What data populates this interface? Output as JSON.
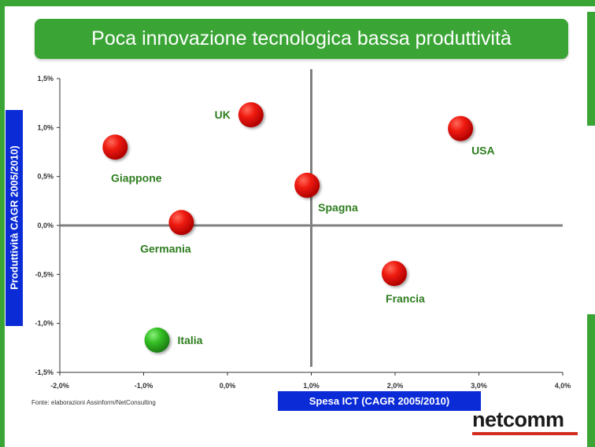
{
  "title": "Poca innovazione tecnologica bassa produttività",
  "source_note": "Fonte: elaborazioni Assinform/NetConsulting",
  "logo": {
    "text": "netcomm"
  },
  "colors": {
    "accent": "#3aa535",
    "axis_label_bg": "#0a2bd6",
    "bubble_red": "#e00000",
    "bubble_green": "#2fb51f",
    "label_green": "#2e7d1f"
  },
  "chart_data": {
    "type": "scatter",
    "xlabel": "Spesa ICT (CAGR 2005/2010)",
    "ylabel": "Produttività  CAGR 2005/2010)",
    "xlim": [
      -2.0,
      4.0
    ],
    "ylim": [
      -1.5,
      1.5
    ],
    "x_ticks": [
      "-2,0%",
      "-1,0%",
      "0,0%",
      "1,0%",
      "2,0%",
      "3,0%",
      "4,0%"
    ],
    "x_tick_values": [
      -2.0,
      -1.0,
      0.0,
      1.0,
      2.0,
      3.0,
      4.0
    ],
    "y_ticks": [
      "1,5%",
      "1,0%",
      "0,5%",
      "0,0%",
      "-0,5%",
      "-1,0%",
      "-1,5%"
    ],
    "y_tick_values": [
      1.5,
      1.0,
      0.5,
      0.0,
      -0.5,
      -1.0,
      -1.5
    ],
    "quadrant_lines": {
      "x": 1.0,
      "y": 0.0
    },
    "points": [
      {
        "name": "UK",
        "x": 0.28,
        "y": 1.13,
        "color": "red",
        "label_pos": "left"
      },
      {
        "name": "USA",
        "x": 2.78,
        "y": 0.99,
        "color": "red",
        "label_pos": "below-right"
      },
      {
        "name": "Giappone",
        "x": -1.34,
        "y": 0.8,
        "color": "red",
        "label_pos": "below"
      },
      {
        "name": "Spagna",
        "x": 0.95,
        "y": 0.41,
        "color": "red",
        "label_pos": "below-right"
      },
      {
        "name": "Germania",
        "x": -0.55,
        "y": 0.03,
        "color": "red",
        "label_pos": "below"
      },
      {
        "name": "Francia",
        "x": 1.99,
        "y": -0.49,
        "color": "red",
        "label_pos": "below"
      },
      {
        "name": "Italia",
        "x": -0.84,
        "y": -1.17,
        "color": "green",
        "label_pos": "right"
      }
    ]
  }
}
